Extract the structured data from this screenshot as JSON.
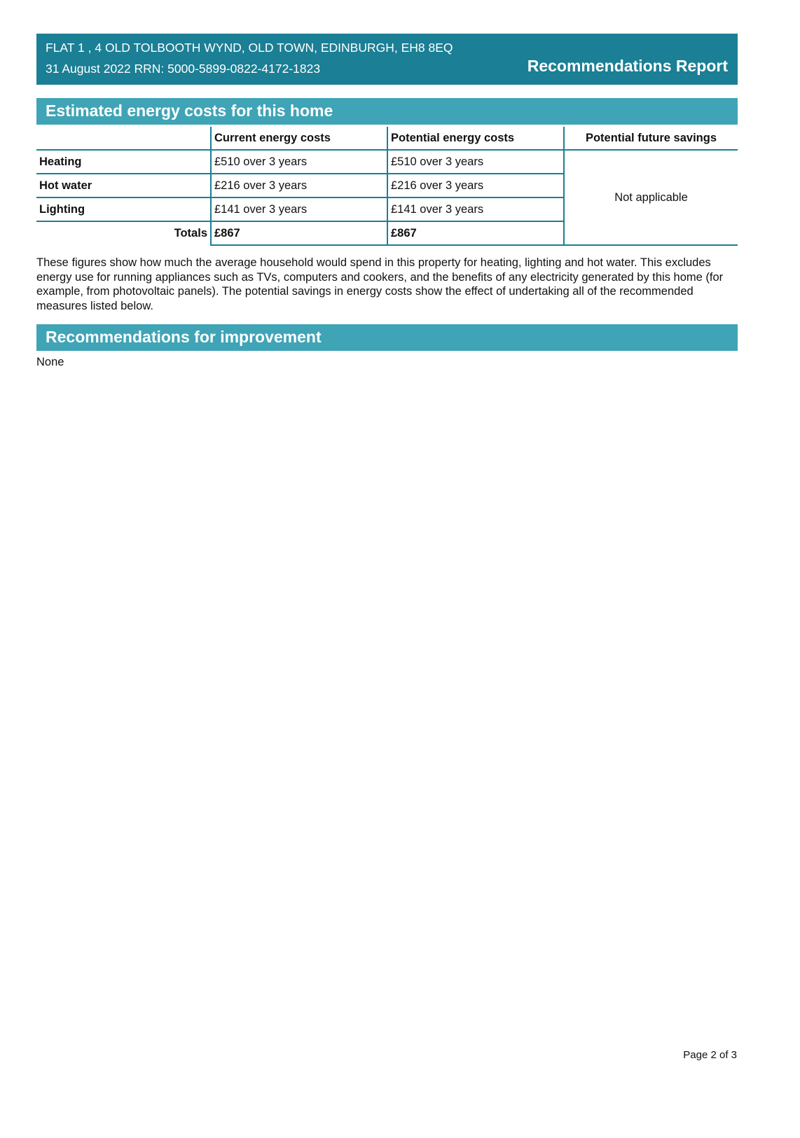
{
  "header": {
    "address": "FLAT 1 , 4 OLD TOLBOOTH WYND, OLD TOWN, EDINBURGH, EH8 8EQ",
    "date_rrn": "31 August 2022 RRN: 5000-5899-0822-4172-1823",
    "report_title": "Recommendations Report"
  },
  "costs": {
    "heading": "Estimated energy costs for this home",
    "columns": [
      "",
      "Current energy costs",
      "Potential energy costs",
      "Potential future savings"
    ],
    "rows": [
      {
        "label": "Heating",
        "current": "£510 over 3 years",
        "potential": "£510 over 3 years"
      },
      {
        "label": "Hot water",
        "current": "£216 over 3 years",
        "potential": "£216 over 3 years"
      },
      {
        "label": "Lighting",
        "current": "£141 over 3 years",
        "potential": "£141 over 3 years"
      }
    ],
    "savings": "Not applicable",
    "totals_label": "Totals",
    "total_current": "£867",
    "total_potential": "£867",
    "note": "These figures show how much the average household would spend in this property for heating, lighting and hot water. This excludes energy use for running appliances such as TVs, computers and cookers, and the benefits of any electricity generated by this home (for example, from photovoltaic panels). The potential savings in energy costs show the effect of undertaking all of the recommended measures listed below."
  },
  "recommendations": {
    "heading": "Recommendations for improvement",
    "text": "None"
  },
  "footer": {
    "page": "Page 2 of 3"
  },
  "colors": {
    "header": "#1b7f95",
    "section": "#3fa4b6"
  }
}
